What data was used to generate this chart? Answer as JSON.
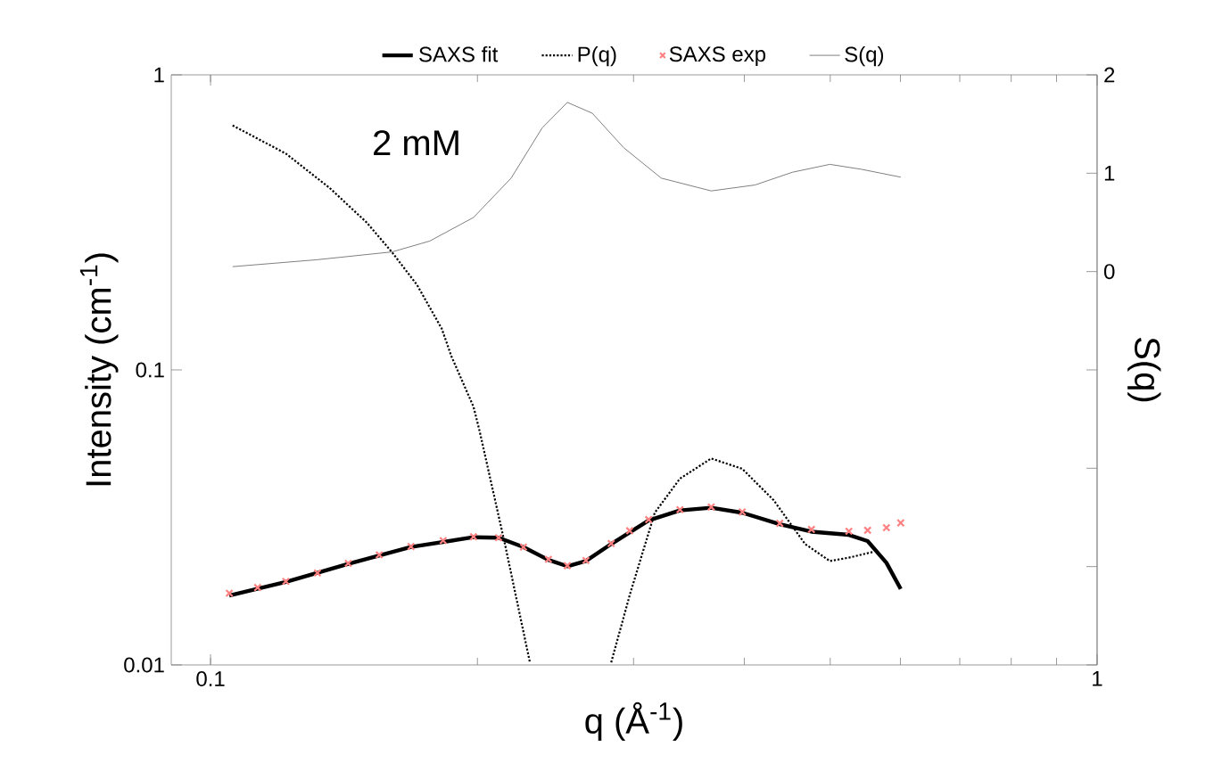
{
  "chart_data": {
    "type": "line",
    "xlabel": "q (Å$^{-1}$)",
    "ylabel": "Intensity (cm$^{-1}$)",
    "y2label": "S(q)",
    "annotations": [
      "2 mM"
    ],
    "log": "xy",
    "legend": "top",
    "xlim": [
      0.0903,
      1
    ],
    "xticks": [
      0.1,
      1
    ],
    "ylim": [
      0.01,
      1
    ],
    "yticks": [
      0.01,
      0.1,
      1
    ],
    "y2lim": [
      -4,
      2
    ],
    "y2ticks": [
      {
        "value": -4,
        "label": null
      },
      {
        "value": -3,
        "label": null
      },
      {
        "value": -2,
        "label": null
      },
      {
        "value": -1,
        "label": null
      },
      0,
      1,
      2
    ],
    "series": [
      {
        "name": "SAXS fit",
        "color": "#000000",
        "line_style": "solid",
        "x": [
          0.105,
          0.1216,
          0.143,
          0.1683,
          0.198,
          0.2113,
          0.2254,
          0.2405,
          0.2526,
          0.2651,
          0.2831,
          0.312,
          0.3384,
          0.3671,
          0.398,
          0.4386,
          0.4762,
          0.5248,
          0.551,
          0.5786,
          0.6005
        ],
        "values": [
          0.0172,
          0.0191,
          0.022,
          0.0251,
          0.0271,
          0.027,
          0.0251,
          0.0227,
          0.0216,
          0.0225,
          0.0257,
          0.0309,
          0.0334,
          0.0341,
          0.0328,
          0.03,
          0.0283,
          0.0276,
          0.0263,
          0.0222,
          0.0181
        ]
      },
      {
        "name": "P(q)",
        "color": "#000000",
        "line_style": "dotted",
        "x": [
          0.1059,
          0.1216,
          0.1362,
          0.15,
          0.1603,
          0.171,
          0.1823,
          0.187,
          0.198,
          0.2012,
          0.2148,
          0.2292,
          0.255,
          0.2831,
          0.2973,
          0.317,
          0.3384,
          0.3671,
          0.398,
          0.4316,
          0.4684,
          0.4995,
          0.5248,
          0.56
        ],
        "values": [
          0.674,
          0.541,
          0.414,
          0.316,
          0.25,
          0.194,
          0.138,
          0.111,
          0.075,
          0.0618,
          0.0257,
          0.0102,
          null,
          0.0102,
          0.0174,
          0.0328,
          0.0428,
          0.0501,
          0.0462,
          0.0362,
          0.0257,
          0.0225,
          0.0231,
          0.0242
        ]
      },
      {
        "name": "SAXS exp",
        "type": "scatter",
        "color": "#ff8080",
        "marker": "cross",
        "x": [
          0.105,
          0.113,
          0.1216,
          0.132,
          0.143,
          0.155,
          0.1683,
          0.183,
          0.198,
          0.2113,
          0.2254,
          0.2405,
          0.2526,
          0.2651,
          0.2831,
          0.297,
          0.312,
          0.3384,
          0.3671,
          0.398,
          0.4386,
          0.4762,
          0.5248,
          0.551,
          0.5786,
          0.6005
        ],
        "values": [
          0.0175,
          0.0183,
          0.0192,
          0.0205,
          0.0221,
          0.0236,
          0.0252,
          0.0264,
          0.0272,
          0.027,
          0.0251,
          0.0228,
          0.0217,
          0.0226,
          0.0258,
          0.0285,
          0.0311,
          0.0336,
          0.0343,
          0.033,
          0.0302,
          0.0288,
          0.0284,
          0.0286,
          0.0292,
          0.0303
        ]
      },
      {
        "name": "S(q)",
        "axis": "y2",
        "color": "#808080",
        "line_style": "solid",
        "x": [
          0.1059,
          0.1318,
          0.1603,
          0.1767,
          0.198,
          0.2183,
          0.2366,
          0.2526,
          0.2695,
          0.2924,
          0.3224,
          0.3671,
          0.4112,
          0.4533,
          0.4995,
          0.542,
          0.6005
        ],
        "values": [
          0.05,
          0.12,
          0.2,
          0.31,
          0.55,
          0.95,
          1.46,
          1.72,
          1.61,
          1.26,
          0.95,
          0.82,
          0.88,
          1.01,
          1.09,
          1.04,
          0.96
        ]
      }
    ]
  }
}
